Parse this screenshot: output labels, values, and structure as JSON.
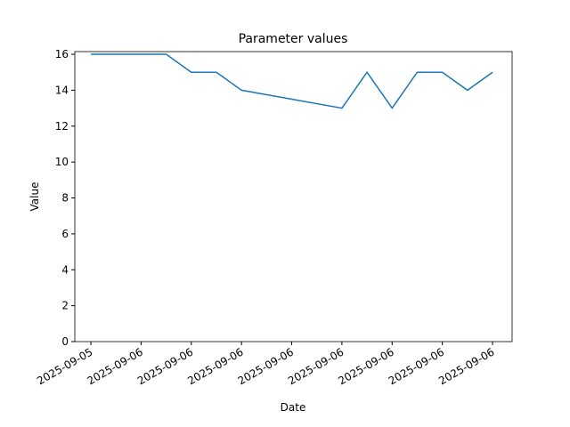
{
  "chart_data": {
    "type": "line",
    "title": "Parameter values",
    "x_label": "Date",
    "y_label": "Value",
    "x": [
      0,
      1.5,
      2,
      2.5,
      3,
      5,
      5.5,
      6,
      6.5,
      7,
      7.5,
      8
    ],
    "series": [
      {
        "color": "#1f77b4",
        "values": [
          16,
          16,
          15,
          15,
          14,
          13,
          15,
          13,
          15,
          15,
          14,
          15
        ]
      }
    ],
    "xlim": [
      -0.32,
      8.39
    ],
    "xticks": [
      {
        "value": 0,
        "label": "2025-09-05"
      },
      {
        "value": 1,
        "label": "2025-09-06"
      },
      {
        "value": 2,
        "label": "2025-09-06"
      },
      {
        "value": 3,
        "label": "2025-09-06"
      },
      {
        "value": 4,
        "label": "2025-09-06"
      },
      {
        "value": 5,
        "label": "2025-09-06"
      },
      {
        "value": 6,
        "label": "2025-09-06"
      },
      {
        "value": 7,
        "label": "2025-09-06"
      },
      {
        "value": 8,
        "label": "2025-09-06"
      }
    ],
    "ylim": [
      0,
      16.15
    ],
    "yticks": [
      0,
      2,
      4,
      6,
      8,
      10,
      12,
      14,
      16
    ],
    "grid": false
  }
}
